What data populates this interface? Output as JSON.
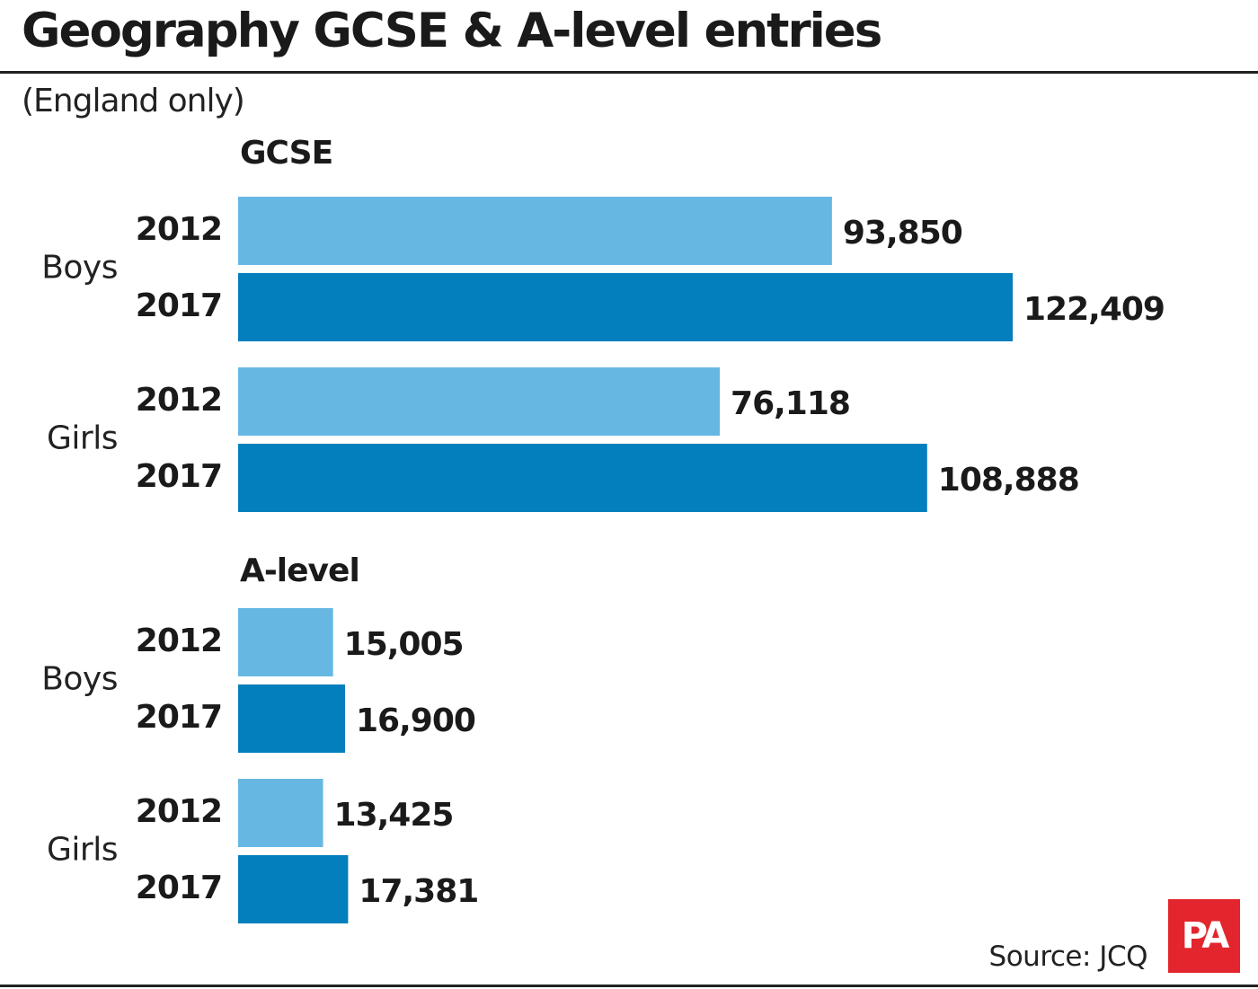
{
  "header": {
    "title": "Geography GCSE & A-level entries",
    "subtitle": "(England only)"
  },
  "colors": {
    "year_2012": "#66b8e3",
    "year_2017": "#047fbe",
    "logo": "#e3262d"
  },
  "chart_data": {
    "type": "bar",
    "orientation": "horizontal",
    "title": "Geography GCSE & A-level entries",
    "subtitle": "(England only)",
    "grid": false,
    "legend": "none",
    "sections": [
      {
        "name": "GCSE",
        "groups": [
          {
            "label": "Boys",
            "bars": [
              {
                "year": "2012",
                "value": 93850,
                "label": "93,850"
              },
              {
                "year": "2017",
                "value": 122409,
                "label": "122,409"
              }
            ]
          },
          {
            "label": "Girls",
            "bars": [
              {
                "year": "2012",
                "value": 76118,
                "label": "76,118"
              },
              {
                "year": "2017",
                "value": 108888,
                "label": "108,888"
              }
            ]
          }
        ]
      },
      {
        "name": "A-level",
        "groups": [
          {
            "label": "Boys",
            "bars": [
              {
                "year": "2012",
                "value": 15005,
                "label": "15,005"
              },
              {
                "year": "2017",
                "value": 16900,
                "label": "16,900"
              }
            ]
          },
          {
            "label": "Girls",
            "bars": [
              {
                "year": "2012",
                "value": 13425,
                "label": "13,425"
              },
              {
                "year": "2017",
                "value": 17381,
                "label": "17,381"
              }
            ]
          }
        ]
      }
    ]
  },
  "footer": {
    "source": "Source: JCQ",
    "logo_text": "PA"
  }
}
